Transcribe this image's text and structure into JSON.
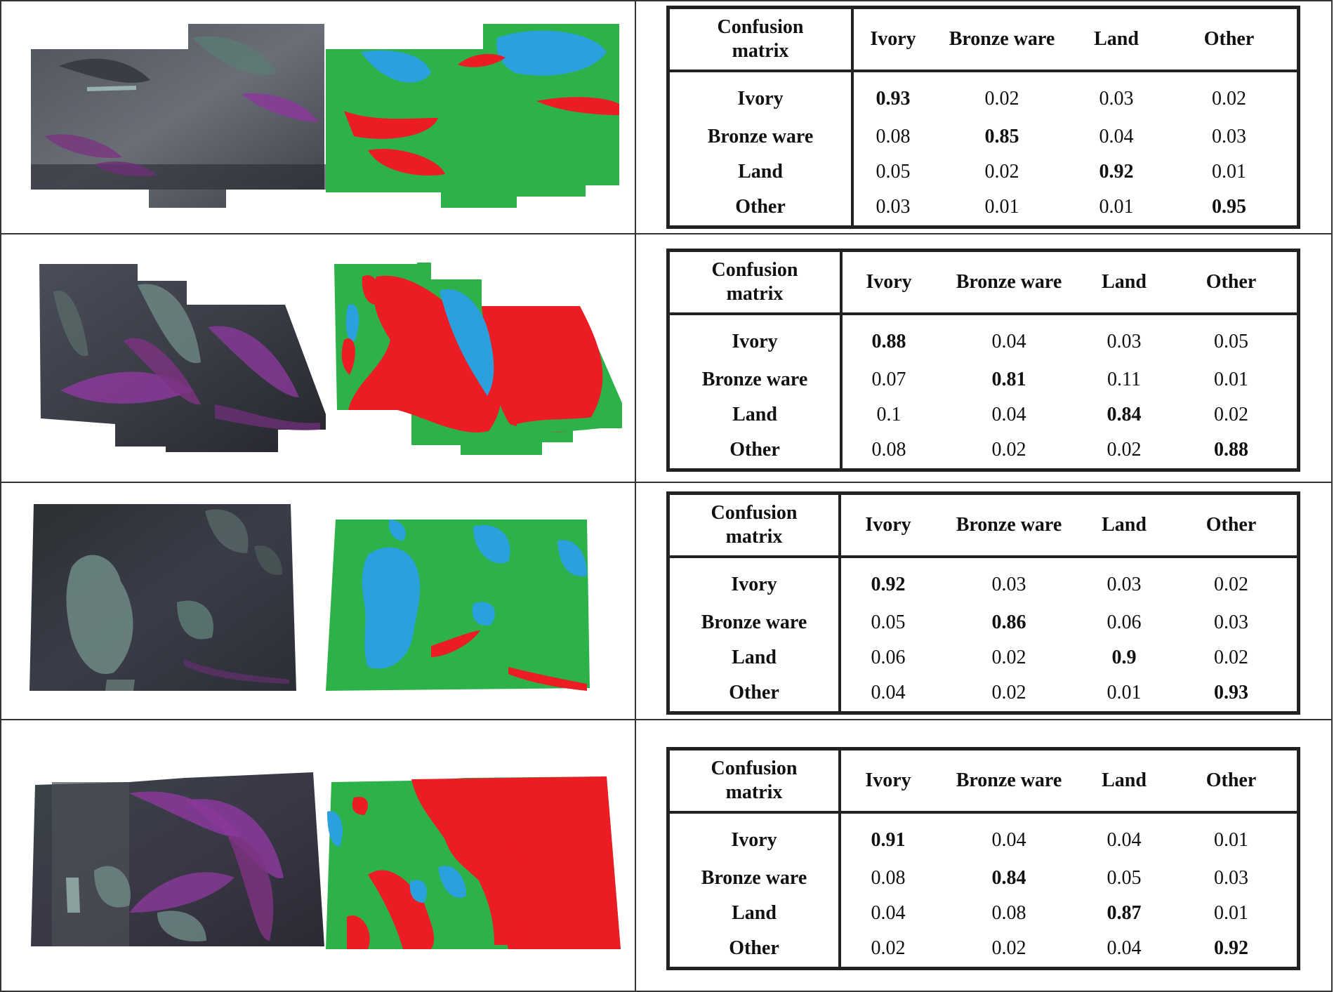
{
  "figure": {
    "rows": [
      {
        "matrix": {
          "corner": [
            "Confusion",
            "matrix"
          ],
          "columns": [
            "Ivory",
            "Bronze ware",
            "Land",
            "Other"
          ],
          "rows": [
            {
              "label": "Ivory",
              "values": [
                "0.93",
                "0.02",
                "0.03",
                "0.02"
              ],
              "diag": 0
            },
            {
              "label": "Bronze ware",
              "values": [
                "0.08",
                "0.85",
                "0.04",
                "0.03"
              ],
              "diag": 1
            },
            {
              "label": "Land",
              "values": [
                "0.05",
                "0.02",
                "0.92",
                "0.01"
              ],
              "diag": 2
            },
            {
              "label": "Other",
              "values": [
                "0.03",
                "0.01",
                "0.01",
                "0.95"
              ],
              "diag": 3
            }
          ]
        }
      },
      {
        "matrix": {
          "corner": [
            "Confusion",
            "matrix"
          ],
          "columns": [
            "Ivory",
            "Bronze ware",
            "Land",
            "Other"
          ],
          "rows": [
            {
              "label": "Ivory",
              "values": [
                "0.88",
                "0.04",
                "0.03",
                "0.05"
              ],
              "diag": 0
            },
            {
              "label": "Bronze ware",
              "values": [
                "0.07",
                "0.81",
                "0.11",
                "0.01"
              ],
              "diag": 1
            },
            {
              "label": "Land",
              "values": [
                "0.1",
                "0.04",
                "0.84",
                "0.02"
              ],
              "diag": 2
            },
            {
              "label": "Other",
              "values": [
                "0.08",
                "0.02",
                "0.02",
                "0.88"
              ],
              "diag": 3
            }
          ]
        }
      },
      {
        "matrix": {
          "corner": [
            "Confusion",
            "matrix"
          ],
          "columns": [
            "Ivory",
            "Bronze ware",
            "Land",
            "Other"
          ],
          "rows": [
            {
              "label": "Ivory",
              "values": [
                "0.92",
                "0.03",
                "0.03",
                "0.02"
              ],
              "diag": 0
            },
            {
              "label": "Bronze ware",
              "values": [
                "0.05",
                "0.86",
                "0.06",
                "0.03"
              ],
              "diag": 1
            },
            {
              "label": "Land",
              "values": [
                "0.06",
                "0.02",
                "0.9",
                "0.02"
              ],
              "diag": 2
            },
            {
              "label": "Other",
              "values": [
                "0.04",
                "0.02",
                "0.01",
                "0.93"
              ],
              "diag": 3
            }
          ]
        }
      },
      {
        "matrix": {
          "corner": [
            "Confusion",
            "matrix"
          ],
          "columns": [
            "Ivory",
            "Bronze ware",
            "Land",
            "Other"
          ],
          "rows": [
            {
              "label": "Ivory",
              "values": [
                "0.91",
                "0.04",
                "0.04",
                "0.01"
              ],
              "diag": 0
            },
            {
              "label": "Bronze ware",
              "values": [
                "0.08",
                "0.84",
                "0.05",
                "0.03"
              ],
              "diag": 1
            },
            {
              "label": "Land",
              "values": [
                "0.04",
                "0.08",
                "0.87",
                "0.01"
              ],
              "diag": 2
            },
            {
              "label": "Other",
              "values": [
                "0.02",
                "0.02",
                "0.04",
                "0.92"
              ],
              "diag": 3
            }
          ]
        }
      }
    ]
  },
  "colors": {
    "ivory": "#ec1c24",
    "bronze_ware": "#2aa0dc",
    "land": "#2db24a",
    "photo_dark": "#2e3038",
    "photo_mid": "#5a5e66",
    "photo_purple": "#8a3a9a",
    "photo_teal": "#6f8a86"
  }
}
